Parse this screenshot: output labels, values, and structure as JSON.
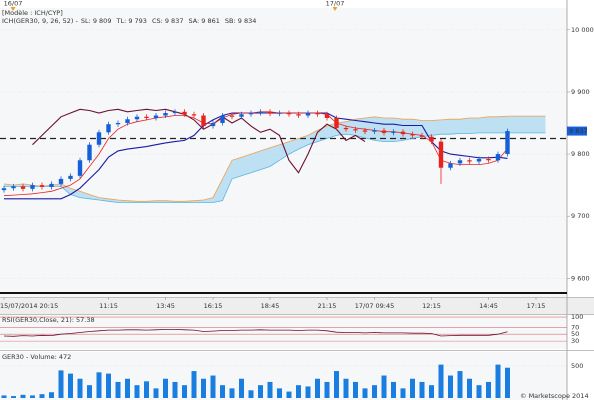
{
  "chart_data": [
    {
      "type": "candlestick",
      "header": "[Modèle : ICH/CYP]",
      "indicator": "ICH(GER30, 9, 26, 52) -",
      "day_markers": [
        "16/07",
        "17/07"
      ],
      "categories": [
        "15/07/2014 20:15",
        null,
        null,
        null,
        null,
        null,
        null,
        null,
        null,
        null,
        null,
        "11:15",
        null,
        null,
        null,
        null,
        null,
        "13:45",
        null,
        null,
        null,
        null,
        "16:15",
        null,
        null,
        null,
        null,
        null,
        "18:45",
        null,
        null,
        null,
        null,
        null,
        "21:15",
        null,
        null,
        null,
        null,
        "17/07 09:45",
        null,
        null,
        null,
        null,
        null,
        "12:15",
        null,
        null,
        null,
        null,
        null,
        "14:45",
        null,
        null,
        null,
        null,
        "17:15",
        null
      ],
      "open": [
        9742,
        9745,
        9748,
        9744,
        9750,
        9747,
        9752,
        9760,
        9765,
        9790,
        9815,
        9835,
        9848,
        9850,
        9856,
        9860,
        9858,
        9862,
        9866,
        9868,
        9864,
        9862,
        9845,
        9850,
        9862,
        9860,
        9864,
        9866,
        9868,
        9865,
        9866,
        9864,
        9862,
        9866,
        9864,
        9858,
        9842,
        9840,
        9838,
        9836,
        9838,
        9834,
        9836,
        9832,
        9830,
        9828,
        9820,
        9778,
        9785,
        9790,
        9788,
        9792,
        9790,
        9800,
        null,
        null,
        null,
        null
      ],
      "high": [
        9749,
        9752,
        9752,
        9754,
        9754,
        9756,
        9764,
        9769,
        9794,
        9819,
        9839,
        9852,
        9854,
        9860,
        9864,
        9864,
        9866,
        9870,
        9872,
        9872,
        9868,
        9866,
        9854,
        9866,
        9866,
        9868,
        9870,
        9872,
        9872,
        9870,
        9870,
        9868,
        9870,
        9870,
        9868,
        9862,
        9846,
        9844,
        9842,
        9842,
        9842,
        9840,
        9840,
        9836,
        9834,
        9832,
        9824,
        9789,
        9794,
        9794,
        9796,
        9796,
        9804,
        9841,
        null,
        null,
        null,
        null
      ],
      "low": [
        9738,
        9741,
        9740,
        9740,
        9743,
        9743,
        9748,
        9756,
        9761,
        9786,
        9811,
        9831,
        9844,
        9846,
        9852,
        9854,
        9854,
        9858,
        9862,
        9860,
        9858,
        9841,
        9841,
        9846,
        9856,
        9856,
        9860,
        9862,
        9861,
        9861,
        9860,
        9858,
        9858,
        9860,
        9854,
        9838,
        9836,
        9834,
        9832,
        9832,
        9830,
        9830,
        9828,
        9826,
        9824,
        9816,
        9752,
        9774,
        9781,
        9784,
        9784,
        9786,
        9786,
        9796,
        null,
        null,
        null,
        null
      ],
      "close": [
        9745,
        9748,
        9744,
        9750,
        9747,
        9752,
        9760,
        9765,
        9790,
        9815,
        9835,
        9848,
        9850,
        9856,
        9860,
        9858,
        9862,
        9866,
        9868,
        9864,
        9862,
        9845,
        9850,
        9862,
        9860,
        9864,
        9866,
        9868,
        9865,
        9866,
        9864,
        9862,
        9866,
        9864,
        9858,
        9842,
        9840,
        9838,
        9836,
        9838,
        9834,
        9836,
        9832,
        9830,
        9828,
        9820,
        9778,
        9785,
        9790,
        9788,
        9792,
        9790,
        9800,
        9837,
        null,
        null,
        null,
        null
      ],
      "up_color": "#1560d6",
      "down_color": "#e8231f",
      "series": [
        {
          "name": "SL: 9 809",
          "color": "#e8231f",
          "values": [
            9733,
            9734,
            9735,
            9736,
            9738,
            9740,
            9745,
            9750,
            9760,
            9780,
            9800,
            9825,
            9840,
            9848,
            9852,
            9855,
            9858,
            9860,
            9862,
            9862,
            9858,
            9850,
            9848,
            9858,
            9864,
            9866,
            9866,
            9868,
            9868,
            9866,
            9866,
            9866,
            9866,
            9866,
            9864,
            9850,
            9845,
            9842,
            9840,
            9838,
            9836,
            9836,
            9834,
            9832,
            9830,
            9820,
            9790,
            9785,
            9783,
            9783,
            9783,
            9785,
            9790,
            9809,
            null,
            null,
            null,
            null
          ]
        },
        {
          "name": "TL: 9 793",
          "color": "#1a1aa8",
          "values": [
            9728,
            9728,
            9728,
            9728,
            9728,
            9728,
            9728,
            9735,
            9745,
            9760,
            9775,
            9795,
            9805,
            9808,
            9810,
            9812,
            9815,
            9818,
            9820,
            9822,
            9830,
            9846,
            9855,
            9862,
            9866,
            9866,
            9866,
            9866,
            9866,
            9866,
            9866,
            9866,
            9866,
            9866,
            9866,
            9858,
            9856,
            9854,
            9852,
            9850,
            9848,
            9848,
            9846,
            9846,
            9846,
            9820,
            9805,
            9800,
            9798,
            9796,
            9794,
            9794,
            9795,
            9793,
            null,
            null,
            null,
            null
          ]
        },
        {
          "name": "CS: 9 837",
          "color": "#6b1035",
          "values": [
            null,
            null,
            null,
            9815,
            9830,
            9845,
            9860,
            9866,
            9872,
            9870,
            9866,
            9870,
            9872,
            9868,
            9870,
            9872,
            9870,
            9872,
            9868,
            9864,
            9855,
            9840,
            9848,
            9860,
            9850,
            9858,
            9845,
            9835,
            9840,
            9830,
            9790,
            9770,
            9800,
            9835,
            9848,
            9840,
            9822,
            9830,
            9820,
            null,
            null,
            null,
            null,
            null,
            null,
            null,
            null,
            null,
            null,
            null,
            null,
            null,
            null,
            null,
            null,
            null,
            null,
            null
          ]
        },
        {
          "name": "SA: 9 861",
          "color": "#f0a050",
          "values": [
            9752,
            9750,
            9752,
            9750,
            9748,
            9750,
            9752,
            9745,
            9740,
            9735,
            9730,
            9728,
            9726,
            9725,
            9724,
            9724,
            9725,
            9725,
            9724,
            9724,
            9725,
            9726,
            9730,
            9760,
            9790,
            9795,
            9800,
            9805,
            9810,
            9815,
            9820,
            9825,
            9830,
            9838,
            9845,
            9850,
            9852,
            9856,
            9858,
            9860,
            9858,
            9858,
            9856,
            9856,
            9854,
            9854,
            9855,
            9856,
            9856,
            9858,
            9858,
            9860,
            9860,
            9861,
            9861,
            9861,
            9861,
            9861
          ]
        },
        {
          "name": "SB: 9 834",
          "color": "#5ab4e6",
          "values": [
            9748,
            9748,
            9748,
            9748,
            9748,
            9748,
            9748,
            9735,
            9730,
            9728,
            9726,
            9724,
            9722,
            9722,
            9722,
            9722,
            9722,
            9722,
            9722,
            9722,
            9722,
            9722,
            9722,
            9725,
            9760,
            9765,
            9770,
            9775,
            9780,
            9790,
            9800,
            9808,
            9815,
            9820,
            9825,
            9830,
            9832,
            9830,
            9826,
            9822,
            9820,
            9820,
            9822,
            9825,
            9828,
            9830,
            9832,
            9832,
            9833,
            9833,
            9834,
            9834,
            9834,
            9834,
            9834,
            9834,
            9834,
            9834
          ]
        }
      ],
      "cloud_color": "#a9d8f0",
      "ylim": [
        9570,
        10035
      ],
      "yticks": [
        {
          "value": 10000,
          "label": "10 000"
        },
        {
          "value": 9900,
          "label": "9 900"
        },
        {
          "value": 9800,
          "label": "9 800"
        },
        {
          "value": 9700,
          "label": "9 700"
        },
        {
          "value": 9600,
          "label": "9 600"
        }
      ],
      "last_price": {
        "value": 9837,
        "label": "9 837"
      },
      "reference_line": 9825,
      "grid": true
    },
    {
      "type": "line",
      "title": "RSI(GER30,Close, 21): 57.38",
      "color": "#6b1035",
      "values": [
        45,
        44,
        46,
        45,
        47,
        46,
        50,
        52,
        55,
        58,
        60,
        62,
        62,
        63,
        63,
        62,
        63,
        64,
        64,
        63,
        62,
        58,
        59,
        61,
        61,
        62,
        62,
        63,
        62,
        62,
        62,
        61,
        62,
        62,
        60,
        56,
        55,
        55,
        54,
        55,
        54,
        54,
        54,
        53,
        53,
        52,
        45,
        46,
        47,
        47,
        47,
        47,
        50,
        57.38,
        null,
        null,
        null,
        null
      ],
      "ylim": [
        10,
        103
      ],
      "yticks": [
        100,
        70,
        50,
        30
      ],
      "level_color": "#e07070"
    },
    {
      "type": "bar",
      "title": "GER30 - Volume: 472",
      "color": "#1a7ee0",
      "values": [
        40,
        30,
        50,
        40,
        60,
        90,
        430,
        380,
        300,
        200,
        400,
        380,
        250,
        300,
        200,
        260,
        150,
        300,
        250,
        200,
        420,
        300,
        350,
        200,
        150,
        300,
        120,
        200,
        250,
        150,
        100,
        200,
        180,
        300,
        250,
        420,
        300,
        250,
        150,
        200,
        350,
        250,
        150,
        300,
        250,
        200,
        520,
        350,
        420,
        300,
        200,
        250,
        520,
        472,
        null,
        null,
        null,
        null
      ],
      "ylim": [
        0,
        670
      ],
      "yticks": [
        500
      ]
    }
  ],
  "footer": "© Marketscope 2014"
}
